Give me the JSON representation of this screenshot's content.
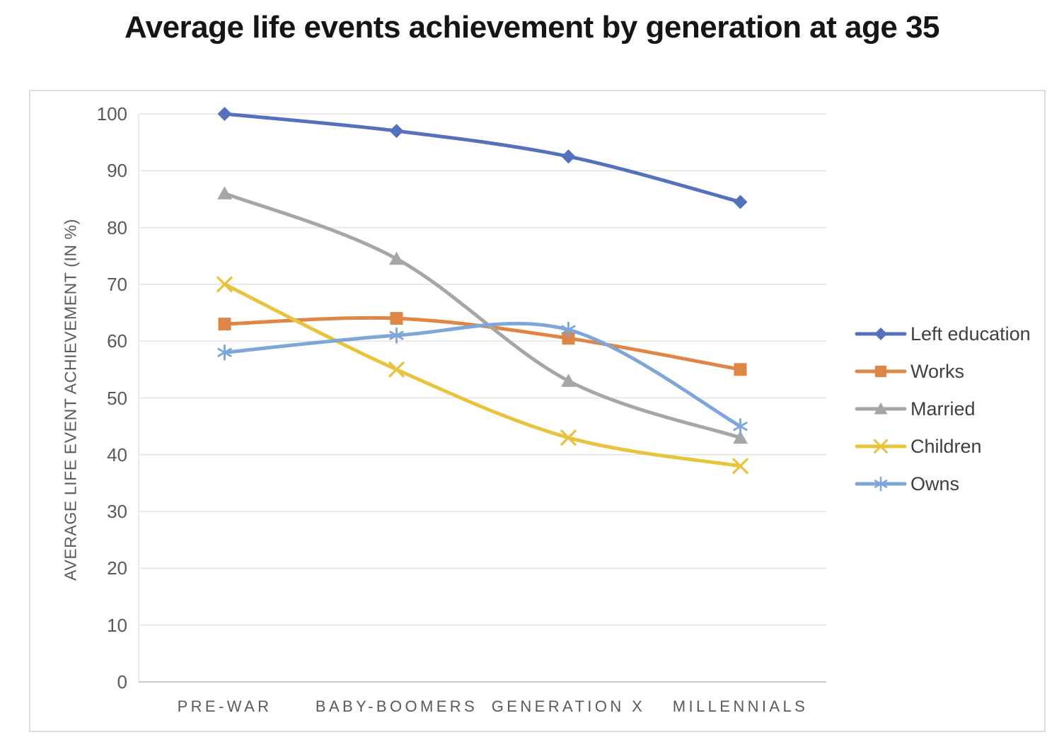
{
  "page": {
    "title": "Average life events achievement by generation at age 35"
  },
  "chart_data": {
    "type": "line",
    "title": "Average life events achievement by generation at age 35",
    "categories": [
      "PRE-WAR",
      "BABY-BOOMERS",
      "GENERATION X",
      "MILLENNIALS"
    ],
    "xlabel": "",
    "ylabel": "AVERAGE LIFE EVENT ACHIEVEMENT (IN %)",
    "ylim": [
      0,
      100
    ],
    "yticks": [
      0,
      10,
      20,
      30,
      40,
      50,
      60,
      70,
      80,
      90,
      100
    ],
    "grid": true,
    "line_style": "smooth",
    "legend_position": "right",
    "series": [
      {
        "name": "Left education",
        "marker": "diamond",
        "color": "#5571BE",
        "values": [
          100,
          97,
          92.5,
          84.5
        ]
      },
      {
        "name": "Works",
        "marker": "square",
        "color": "#DD8646",
        "values": [
          63,
          64,
          60.5,
          55
        ]
      },
      {
        "name": "Married",
        "marker": "triangle",
        "color": "#A6A6A6",
        "values": [
          86,
          74.5,
          53,
          43
        ]
      },
      {
        "name": "Children",
        "marker": "x",
        "color": "#E8C33E",
        "values": [
          70,
          55,
          43,
          38
        ]
      },
      {
        "name": "Owns",
        "marker": "asterisk",
        "color": "#7EA6D8",
        "values": [
          58,
          61,
          62,
          45
        ]
      }
    ],
    "gridline_color": "#e4e4e4",
    "axis_line_color": "#c8c8c8",
    "tick_label_color": "#595959"
  }
}
